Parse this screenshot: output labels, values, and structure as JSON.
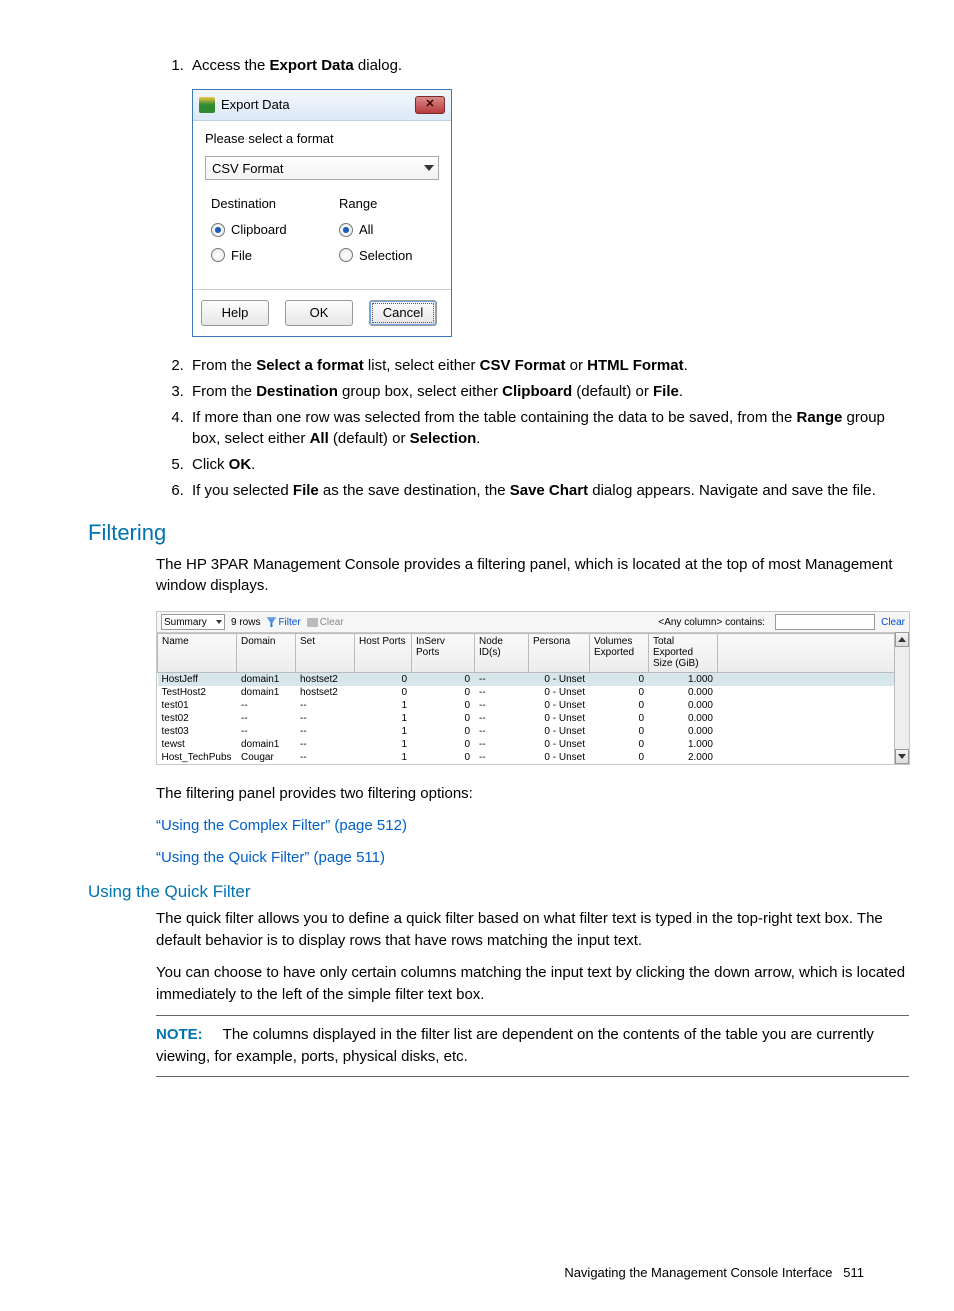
{
  "step1": {
    "n": "1.",
    "pre": "Access the ",
    "b": "Export Data",
    "post": " dialog."
  },
  "dialog": {
    "title": "Export Data",
    "prompt": "Please select a format",
    "format": "CSV Format",
    "dest_label": "Destination",
    "dest_opts": [
      "Clipboard",
      "File"
    ],
    "range_label": "Range",
    "range_opts": [
      "All",
      "Selection"
    ],
    "help": "Help",
    "ok": "OK",
    "cancel": "Cancel"
  },
  "step2": {
    "n": "2.",
    "t1": "From the ",
    "b1": "Select a format",
    "t2": " list, select either ",
    "b2": "CSV Format",
    "t3": " or ",
    "b3": "HTML Format",
    "t4": "."
  },
  "step3": {
    "n": "3.",
    "t1": "From the ",
    "b1": "Destination",
    "t2": " group box, select either ",
    "b2": "Clipboard",
    "t3": " (default) or ",
    "b3": "File",
    "t4": "."
  },
  "step4": {
    "n": "4.",
    "t1": "If more than one row was selected from the table containing the data to be saved, from the ",
    "b1": "Range",
    "t2": " group box, select either ",
    "b2": "All",
    "t3": " (default) or ",
    "b3": "Selection",
    "t4": "."
  },
  "step5": {
    "n": "5.",
    "t1": "Click ",
    "b1": "OK",
    "t2": "."
  },
  "step6": {
    "n": "6.",
    "t1": "If you selected ",
    "b1": "File",
    "t2": " as the save destination, the ",
    "b2": "Save Chart",
    "t3": " dialog appears. Navigate and save the file."
  },
  "filtering": {
    "h": "Filtering",
    "p": "The HP 3PAR Management Console provides a filtering panel, which is located at the top of most Management window displays."
  },
  "shot": {
    "summary": "Summary",
    "rows": "9 rows",
    "filter": "Filter",
    "clear": "Clear",
    "qf_label": "<Any column> contains:",
    "qf_clear": "Clear",
    "cols": [
      "Name",
      "Domain",
      "Set",
      "Host Ports",
      "InServ Ports",
      "Node ID(s)",
      "Persona",
      "Volumes Exported",
      "Total Exported Size (GiB)"
    ],
    "data": [
      [
        "HostJeff",
        "domain1",
        "hostset2",
        "0",
        "0",
        "--",
        "0 - Unset",
        "0",
        "1.000"
      ],
      [
        "TestHost2",
        "domain1",
        "hostset2",
        "0",
        "0",
        "--",
        "0 - Unset",
        "0",
        "0.000"
      ],
      [
        "test01",
        "--",
        "--",
        "1",
        "0",
        "--",
        "0 - Unset",
        "0",
        "0.000"
      ],
      [
        "test02",
        "--",
        "--",
        "1",
        "0",
        "--",
        "0 - Unset",
        "0",
        "0.000"
      ],
      [
        "test03",
        "--",
        "--",
        "1",
        "0",
        "--",
        "0 - Unset",
        "0",
        "0.000"
      ],
      [
        "tewst",
        "domain1",
        "--",
        "1",
        "0",
        "--",
        "0 - Unset",
        "0",
        "1.000"
      ],
      [
        "Host_TechPubs",
        "Cougar",
        "--",
        "1",
        "0",
        "--",
        "0 - Unset",
        "0",
        "2.000"
      ]
    ]
  },
  "after_shot": "The filtering panel provides two filtering options:",
  "link1": "“Using the Complex Filter” (page 512)",
  "link2": "“Using the Quick Filter” (page 511)",
  "qf": {
    "h": "Using the Quick Filter",
    "p1": "The quick filter allows you to define a quick filter based on what filter text is typed in the top-right text box. The default behavior is to display rows that have rows matching the input text.",
    "p2": "You can choose to have only certain columns matching the input text by clicking the down arrow, which is located immediately to the left of the simple filter text box."
  },
  "note": {
    "label": "NOTE:",
    "text": "The columns displayed in the filter list are dependent on the contents of the table you are currently viewing, for example, ports, physical disks, etc."
  },
  "footer": {
    "text": "Navigating the Management Console Interface",
    "page": "511"
  }
}
